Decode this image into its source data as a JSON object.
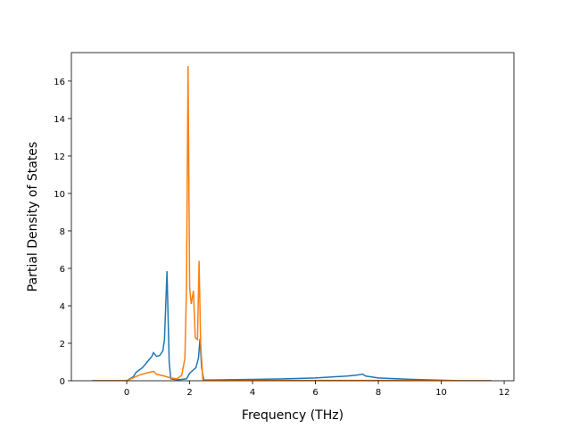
{
  "chart_data": {
    "type": "line",
    "xlabel": "Frequency (THz)",
    "ylabel": "Partial Density of States",
    "xlim": [
      -1.76,
      12.31
    ],
    "ylim": [
      0,
      17.52
    ],
    "xticks": [
      0,
      2,
      4,
      6,
      8,
      10,
      12
    ],
    "yticks": [
      0,
      2,
      4,
      6,
      8,
      10,
      12,
      14,
      16
    ],
    "series": [
      {
        "color": "#1f77b4",
        "x": [
          -1.1,
          0,
          0.2,
          0.3,
          0.5,
          0.7,
          0.8,
          0.85,
          0.95,
          1.05,
          1.15,
          1.2,
          1.28,
          1.35,
          1.4,
          1.6,
          1.9,
          2.0,
          2.1,
          2.2,
          2.28,
          2.33,
          2.38,
          2.45,
          3,
          4,
          5,
          6,
          7,
          7.3,
          7.5,
          7.6,
          8,
          9,
          10,
          10.5,
          11.6
        ],
        "values": [
          0,
          0,
          0.2,
          0.45,
          0.7,
          1.1,
          1.3,
          1.5,
          1.3,
          1.35,
          1.6,
          2.2,
          5.85,
          1.0,
          0.1,
          0.05,
          0.1,
          0.4,
          0.55,
          0.7,
          1.2,
          2.25,
          0.7,
          0.05,
          0.05,
          0.07,
          0.1,
          0.15,
          0.25,
          0.3,
          0.35,
          0.25,
          0.15,
          0.08,
          0.03,
          0,
          0
        ]
      },
      {
        "color": "#ff7f0e",
        "x": [
          -1.1,
          0,
          0.2,
          0.4,
          0.6,
          0.85,
          0.95,
          1.2,
          1.4,
          1.6,
          1.75,
          1.85,
          1.9,
          1.95,
          2.0,
          2.05,
          2.12,
          2.18,
          2.25,
          2.3,
          2.35,
          2.42,
          3,
          10.4,
          10.5,
          11.6
        ],
        "values": [
          0,
          0,
          0.15,
          0.3,
          0.4,
          0.5,
          0.35,
          0.25,
          0.15,
          0.1,
          0.3,
          1.2,
          5,
          16.8,
          5,
          4.1,
          4.8,
          2.3,
          2.2,
          6.4,
          2.0,
          0.05,
          0.02,
          0.02,
          0,
          0
        ]
      }
    ]
  }
}
